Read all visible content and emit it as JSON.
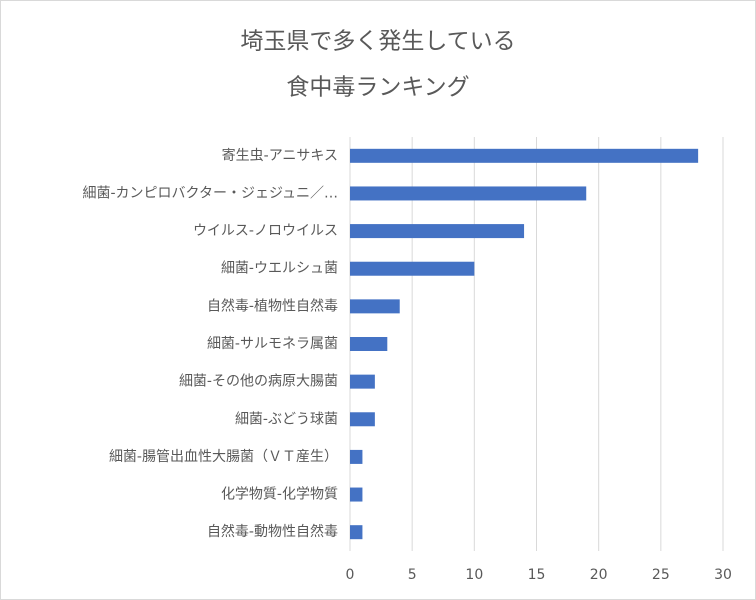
{
  "chart_data": {
    "type": "bar",
    "orientation": "horizontal",
    "title": [
      "埼玉県で多く発生している",
      "食中毒ランキング"
    ],
    "categories": [
      "寄生虫-アニサキス",
      "細菌-カンピロバクター・ジェジュニ／…",
      "ウイルス-ノロウイルス",
      "細菌-ウエルシュ菌",
      "自然毒-植物性自然毒",
      "細菌-サルモネラ属菌",
      "細菌-その他の病原大腸菌",
      "細菌-ぶどう球菌",
      "細菌-腸管出血性大腸菌（ＶＴ産生）",
      "化学物質-化学物質",
      "自然毒-動物性自然毒"
    ],
    "values": [
      28,
      19,
      14,
      10,
      4,
      3,
      2,
      2,
      1,
      1,
      1
    ],
    "color": "#4472c4",
    "xlim": [
      0,
      30
    ],
    "xticks": [
      0,
      5,
      10,
      15,
      20,
      25,
      30
    ],
    "grid": true
  }
}
